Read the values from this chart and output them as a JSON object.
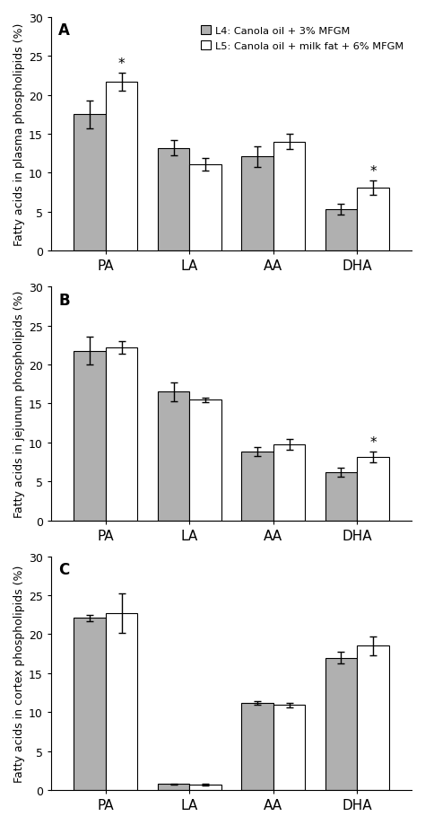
{
  "panels": [
    {
      "label": "A",
      "ylabel": "Fatty acids in plasma phospholipids (%)",
      "categories": [
        "PA",
        "LA",
        "AA",
        "DHA"
      ],
      "L4_values": [
        17.5,
        13.2,
        12.1,
        5.3
      ],
      "L5_values": [
        21.7,
        11.1,
        14.0,
        8.1
      ],
      "L4_errors": [
        1.8,
        1.0,
        1.3,
        0.7
      ],
      "L5_errors": [
        1.1,
        0.8,
        1.0,
        0.9
      ],
      "sig_L4": [
        false,
        false,
        false,
        false
      ],
      "sig_L5": [
        true,
        false,
        false,
        true
      ],
      "show_legend": true,
      "ylim": [
        0,
        30
      ]
    },
    {
      "label": "B",
      "ylabel": "Fatty acids in jejunum phospholipids (%)",
      "categories": [
        "PA",
        "LA",
        "AA",
        "DHA"
      ],
      "L4_values": [
        21.8,
        16.5,
        8.8,
        6.2
      ],
      "L5_values": [
        22.2,
        15.5,
        9.8,
        8.1
      ],
      "L4_errors": [
        1.8,
        1.2,
        0.6,
        0.6
      ],
      "L5_errors": [
        0.8,
        0.3,
        0.7,
        0.7
      ],
      "sig_L4": [
        false,
        false,
        false,
        false
      ],
      "sig_L5": [
        false,
        false,
        false,
        true
      ],
      "show_legend": false,
      "ylim": [
        0,
        30
      ]
    },
    {
      "label": "C",
      "ylabel": "Fatty acids in cortex phospholipids (%)",
      "categories": [
        "PA",
        "LA",
        "AA",
        "DHA"
      ],
      "L4_values": [
        22.1,
        0.75,
        11.2,
        17.0
      ],
      "L5_values": [
        22.7,
        0.65,
        10.9,
        18.5
      ],
      "L4_errors": [
        0.4,
        0.1,
        0.2,
        0.8
      ],
      "L5_errors": [
        2.5,
        0.1,
        0.3,
        1.2
      ],
      "sig_L4": [
        false,
        false,
        false,
        false
      ],
      "sig_L5": [
        false,
        false,
        false,
        false
      ],
      "show_legend": false,
      "ylim": [
        0,
        30
      ]
    }
  ],
  "L4_color": "#b0b0b0",
  "L5_color": "#ffffff",
  "bar_edgecolor": "#000000",
  "bar_width": 0.38,
  "legend_L4": "L4: Canola oil + 3% MFGM",
  "legend_L5": "L5: Canola oil + milk fat + 6% MFGM",
  "sig_marker": "*",
  "fig_width": 4.74,
  "fig_height": 9.2,
  "dpi": 100
}
